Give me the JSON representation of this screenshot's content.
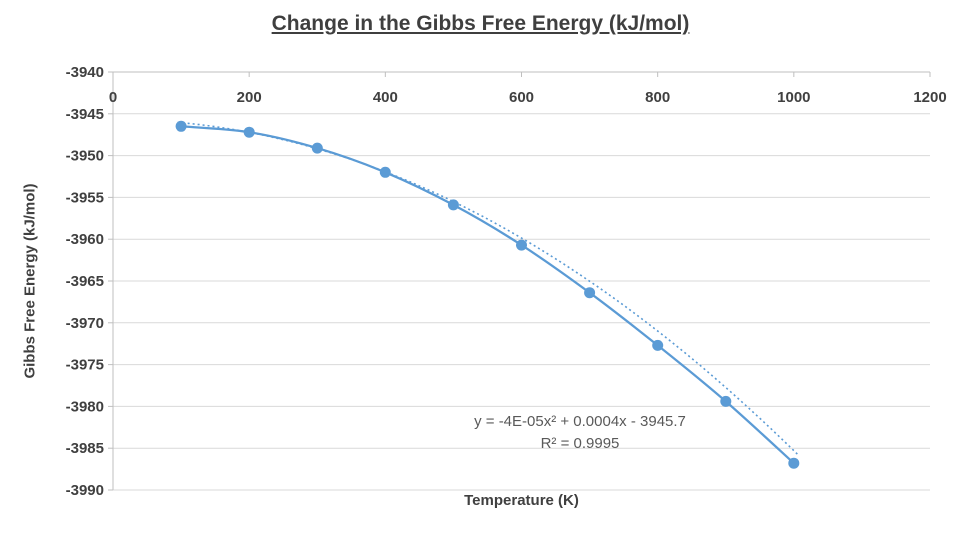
{
  "chart_data": {
    "type": "scatter",
    "title": "Change in the Gibbs Free Energy (kJ/mol)",
    "xlabel": "Temperature (K)",
    "ylabel": "Gibbs Free Energy (kJ/mol)",
    "xlim": [
      0,
      1200
    ],
    "ylim": [
      -3990,
      -3940
    ],
    "x_ticks": [
      0,
      200,
      400,
      600,
      800,
      1000,
      1200
    ],
    "y_ticks": [
      -3940,
      -3945,
      -3950,
      -3955,
      -3960,
      -3965,
      -3970,
      -3975,
      -3980,
      -3985,
      -3990
    ],
    "x": [
      100,
      200,
      300,
      400,
      500,
      600,
      700,
      800,
      900,
      1000
    ],
    "y": [
      -3946.5,
      -3947.2,
      -3949.1,
      -3952.0,
      -3955.9,
      -3960.7,
      -3966.4,
      -3972.7,
      -3979.4,
      -3986.8
    ],
    "grid": "horizontal",
    "legend": "none",
    "marker_color": "#5B9BD5",
    "line_color": "#5B9BD5",
    "trendline_color": "#5B9BD5",
    "gridline_color": "#D9D9D9",
    "axis_color": "#BFBFBF",
    "tick_label_color": "#404040",
    "trendline": {
      "type": "polynomial",
      "a": -4e-05,
      "b": 0.0004,
      "c": -3945.7,
      "label": "y = -4E-05x² + 0.0004x - 3945.7",
      "r2_label": "R² = 0.9995"
    }
  }
}
